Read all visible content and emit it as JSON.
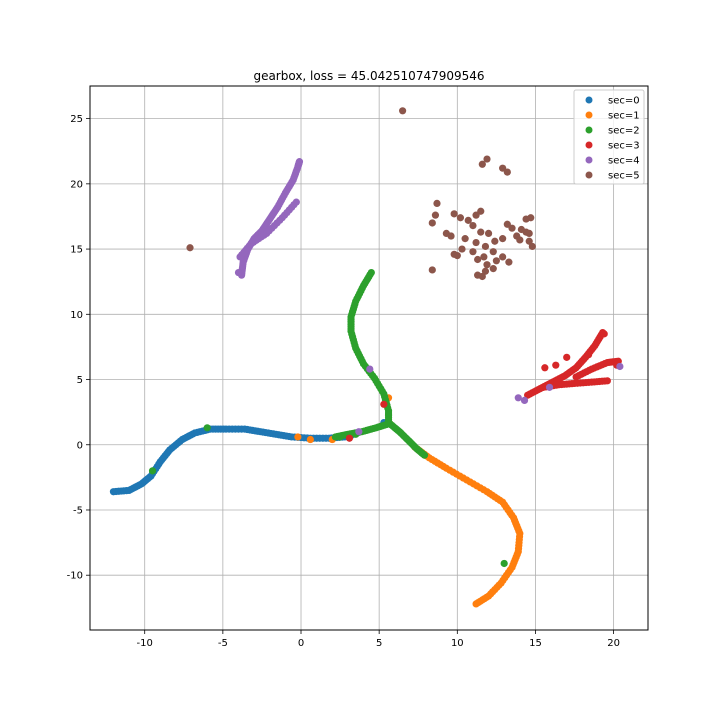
{
  "chart_data": {
    "type": "scatter",
    "title": "gearbox, loss = 45.042510747909546",
    "xlabel": "",
    "ylabel": "",
    "xlim": [
      -13.5,
      22.2
    ],
    "ylim": [
      -14.2,
      27.5
    ],
    "xticks": [
      -10,
      -5,
      0,
      5,
      10,
      15,
      20
    ],
    "yticks": [
      -10,
      -5,
      0,
      5,
      10,
      15,
      20,
      25
    ],
    "grid": true,
    "legend_position": "top-right",
    "series": [
      {
        "name": "sec=0",
        "color": "#1f77b4",
        "curves": [
          [
            [
              -12.0,
              -3.6
            ],
            [
              -11.0,
              -3.5
            ],
            [
              -10.2,
              -3.0
            ],
            [
              -9.6,
              -2.4
            ],
            [
              -9.0,
              -1.3
            ],
            [
              -8.4,
              -0.4
            ],
            [
              -7.6,
              0.4
            ],
            [
              -6.8,
              0.9
            ],
            [
              -5.8,
              1.2
            ],
            [
              -4.8,
              1.2
            ],
            [
              -3.6,
              1.2
            ],
            [
              -2.6,
              1.0
            ],
            [
              -1.6,
              0.8
            ],
            [
              -0.6,
              0.6
            ],
            [
              0.6,
              0.5
            ],
            [
              1.8,
              0.5
            ],
            [
              2.8,
              0.6
            ],
            [
              3.6,
              0.9
            ]
          ]
        ],
        "scatter": [
          [
            3.2,
            0.7
          ],
          [
            5.3,
            1.7
          ],
          [
            7.3,
            -0.2
          ]
        ]
      },
      {
        "name": "sec=1",
        "color": "#ff7f0e",
        "curves": [
          [
            [
              7.3,
              -0.2
            ],
            [
              8.2,
              -1.0
            ],
            [
              9.3,
              -1.8
            ],
            [
              10.6,
              -2.7
            ],
            [
              11.9,
              -3.6
            ],
            [
              12.9,
              -4.4
            ],
            [
              13.6,
              -5.6
            ],
            [
              14.0,
              -6.8
            ],
            [
              13.9,
              -8.2
            ],
            [
              13.5,
              -9.4
            ],
            [
              12.8,
              -10.6
            ],
            [
              12.0,
              -11.6
            ],
            [
              11.2,
              -12.2
            ]
          ]
        ],
        "scatter": [
          [
            -0.2,
            0.6
          ],
          [
            0.6,
            0.4
          ],
          [
            2.0,
            0.4
          ],
          [
            5.6,
            3.6
          ],
          [
            5.7,
            1.6
          ],
          [
            7.5,
            -0.4
          ]
        ]
      },
      {
        "name": "sec=2",
        "color": "#2ca02c",
        "curves": [
          [
            [
              4.5,
              13.2
            ],
            [
              4.0,
              12.2
            ],
            [
              3.5,
              11.0
            ],
            [
              3.2,
              9.8
            ],
            [
              3.2,
              8.7
            ],
            [
              3.5,
              7.4
            ],
            [
              4.0,
              6.2
            ],
            [
              4.7,
              5.1
            ],
            [
              5.3,
              3.9
            ],
            [
              5.6,
              2.6
            ],
            [
              5.6,
              1.6
            ],
            [
              4.8,
              1.3
            ],
            [
              3.9,
              1.0
            ],
            [
              3.0,
              0.8
            ],
            [
              2.2,
              0.6
            ]
          ],
          [
            [
              5.7,
              1.6
            ],
            [
              6.3,
              1.0
            ],
            [
              6.9,
              0.3
            ],
            [
              7.4,
              -0.3
            ],
            [
              7.9,
              -0.8
            ]
          ]
        ],
        "scatter": [
          [
            -6.0,
            1.3
          ],
          [
            -9.5,
            -2.0
          ],
          [
            2.5,
            0.6
          ],
          [
            13.0,
            -9.1
          ],
          [
            3.5,
            0.8
          ]
        ]
      },
      {
        "name": "sec=3",
        "color": "#d62728",
        "curves": [
          [
            [
              14.5,
              3.8
            ],
            [
              15.3,
              4.3
            ],
            [
              16.1,
              4.8
            ],
            [
              16.9,
              5.3
            ],
            [
              17.6,
              5.9
            ],
            [
              18.2,
              6.7
            ],
            [
              18.8,
              7.6
            ],
            [
              19.3,
              8.6
            ]
          ],
          [
            [
              15.5,
              4.4
            ],
            [
              16.5,
              4.6
            ],
            [
              17.5,
              4.7
            ],
            [
              18.6,
              4.8
            ],
            [
              19.6,
              4.9
            ]
          ],
          [
            [
              17.6,
              5.2
            ],
            [
              18.6,
              5.8
            ],
            [
              19.6,
              6.3
            ],
            [
              20.3,
              6.4
            ]
          ]
        ],
        "scatter": [
          [
            3.1,
            0.5
          ],
          [
            5.3,
            3.1
          ],
          [
            19.4,
            8.5
          ],
          [
            20.2,
            6.1
          ],
          [
            17.0,
            6.7
          ],
          [
            15.6,
            5.9
          ],
          [
            16.3,
            6.1
          ],
          [
            18.4,
            6.9
          ]
        ]
      },
      {
        "name": "sec=4",
        "color": "#9467bd",
        "curves": [
          [
            [
              -3.8,
              13.0
            ],
            [
              -3.7,
              14.0
            ],
            [
              -3.4,
              15.0
            ],
            [
              -3.0,
              15.8
            ],
            [
              -2.5,
              16.4
            ],
            [
              -2.0,
              17.3
            ],
            [
              -1.5,
              18.2
            ],
            [
              -1.0,
              19.3
            ],
            [
              -0.5,
              20.3
            ],
            [
              -0.2,
              21.3
            ],
            [
              -0.1,
              21.7
            ]
          ],
          [
            [
              -3.9,
              14.4
            ],
            [
              -3.2,
              15.4
            ],
            [
              -2.2,
              16.2
            ],
            [
              -1.2,
              17.4
            ],
            [
              -0.3,
              18.6
            ]
          ]
        ],
        "scatter": [
          [
            4.4,
            5.8
          ],
          [
            3.7,
            1.0
          ],
          [
            14.3,
            3.4
          ],
          [
            15.9,
            4.4
          ],
          [
            20.4,
            6.0
          ],
          [
            -4.0,
            13.2
          ],
          [
            13.9,
            3.6
          ]
        ]
      },
      {
        "name": "sec=5",
        "color": "#8c564b",
        "curves": [],
        "scatter": [
          [
            6.5,
            25.6
          ],
          [
            -7.1,
            15.1
          ],
          [
            11.6,
            21.5
          ],
          [
            11.9,
            21.9
          ],
          [
            12.9,
            21.2
          ],
          [
            13.2,
            20.9
          ],
          [
            8.7,
            18.5
          ],
          [
            8.6,
            17.6
          ],
          [
            8.4,
            17.0
          ],
          [
            9.3,
            16.2
          ],
          [
            9.6,
            16.0
          ],
          [
            9.8,
            17.7
          ],
          [
            10.2,
            17.4
          ],
          [
            10.7,
            17.2
          ],
          [
            11.2,
            17.6
          ],
          [
            11.5,
            17.9
          ],
          [
            11.0,
            16.8
          ],
          [
            11.5,
            16.3
          ],
          [
            12.0,
            16.2
          ],
          [
            10.5,
            15.8
          ],
          [
            11.2,
            15.5
          ],
          [
            11.8,
            15.2
          ],
          [
            12.4,
            15.6
          ],
          [
            10.3,
            15.0
          ],
          [
            11.0,
            14.8
          ],
          [
            11.7,
            14.4
          ],
          [
            12.3,
            14.8
          ],
          [
            11.3,
            14.2
          ],
          [
            11.9,
            13.8
          ],
          [
            12.5,
            14.1
          ],
          [
            12.9,
            14.4
          ],
          [
            11.8,
            13.3
          ],
          [
            12.3,
            13.5
          ],
          [
            11.3,
            13.0
          ],
          [
            11.6,
            12.9
          ],
          [
            9.8,
            14.6
          ],
          [
            10.0,
            14.5
          ],
          [
            8.4,
            13.4
          ],
          [
            13.2,
            16.9
          ],
          [
            13.5,
            16.6
          ],
          [
            13.8,
            16.0
          ],
          [
            14.1,
            16.5
          ],
          [
            14.4,
            16.3
          ],
          [
            14.6,
            16.2
          ],
          [
            14.0,
            15.7
          ],
          [
            14.6,
            15.6
          ],
          [
            14.4,
            17.3
          ],
          [
            14.7,
            17.4
          ],
          [
            14.8,
            15.2
          ],
          [
            12.9,
            15.8
          ],
          [
            13.3,
            14.0
          ]
        ]
      }
    ]
  }
}
